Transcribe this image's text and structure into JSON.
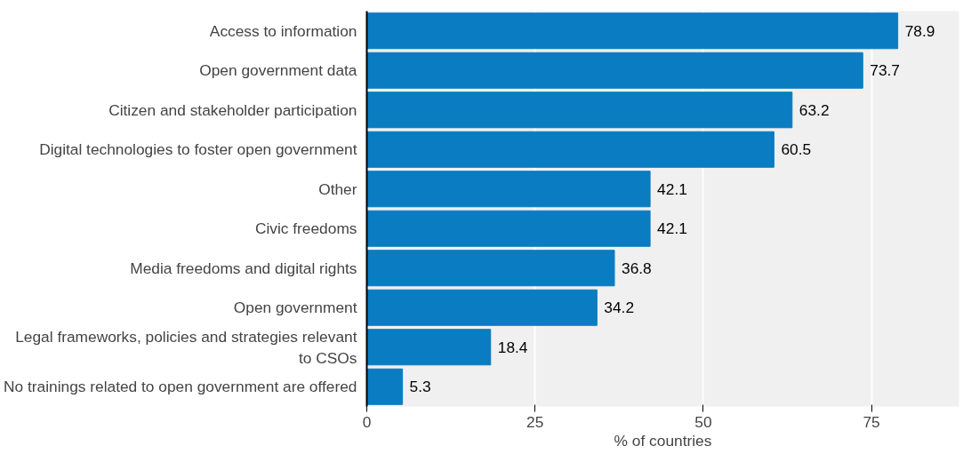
{
  "chart_data": {
    "type": "bar",
    "orientation": "horizontal",
    "xlabel": "% of countries",
    "categories": [
      "Access to information",
      "Open government data",
      "Citizen and stakeholder participation",
      "Digital technologies to foster open government",
      "Other",
      "Civic freedoms",
      "Media freedoms and digital rights",
      "Open government",
      "Legal frameworks, policies and strategies relevant to CSOs",
      "No trainings related to open government are offered"
    ],
    "values": [
      78.9,
      73.7,
      63.2,
      60.5,
      42.1,
      42.1,
      36.8,
      34.2,
      18.4,
      5.3
    ],
    "color": "#0a7cc1",
    "data_labels": true,
    "xlim": [
      0,
      88
    ],
    "xticks": [
      0,
      25,
      50,
      75
    ],
    "grid": "x"
  }
}
